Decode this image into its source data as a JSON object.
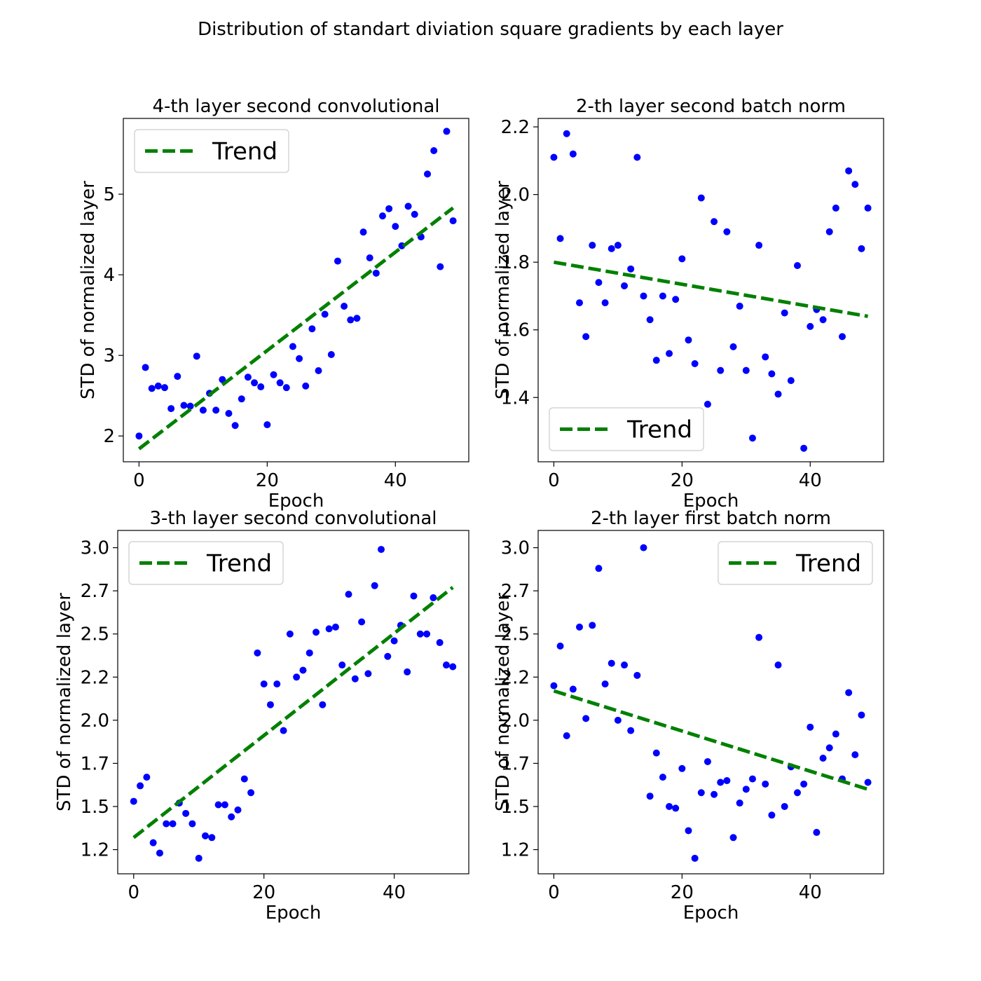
{
  "figure": {
    "title": "Distribution of standart diviation square gradients by each layer"
  },
  "chart_data": [
    {
      "type": "scatter",
      "title": "4-th layer second convolutional",
      "xlabel": "Epoch",
      "ylabel": "STD of normalized layer",
      "xlim": [
        -2.45,
        51.45
      ],
      "ylim": [
        1.68,
        5.94
      ],
      "xticks": [
        0,
        20,
        40
      ],
      "yticks": [
        2,
        3,
        4,
        5
      ],
      "ytick_labels": [
        "2",
        "3",
        "4",
        "5"
      ],
      "legend": {
        "label": "Trend",
        "position": "top-left"
      },
      "series": [
        {
          "kind": "points",
          "color": "#0000ff",
          "x": [
            0,
            1,
            2,
            3,
            4,
            5,
            6,
            7,
            8,
            9,
            10,
            11,
            12,
            13,
            14,
            15,
            16,
            17,
            18,
            19,
            20,
            21,
            22,
            23,
            24,
            25,
            26,
            27,
            28,
            29,
            30,
            31,
            32,
            33,
            34,
            35,
            36,
            37,
            38,
            39,
            40,
            41,
            42,
            43,
            44,
            45,
            46,
            47,
            48,
            49
          ],
          "y": [
            2.0,
            2.85,
            2.59,
            2.62,
            2.6,
            2.34,
            2.74,
            2.38,
            2.37,
            2.99,
            2.32,
            2.53,
            2.32,
            2.7,
            2.28,
            2.13,
            2.46,
            2.73,
            2.66,
            2.61,
            2.14,
            2.76,
            2.66,
            2.6,
            3.11,
            2.96,
            2.62,
            3.33,
            2.81,
            3.51,
            3.01,
            4.17,
            3.61,
            3.44,
            3.46,
            4.53,
            4.21,
            4.02,
            4.73,
            4.82,
            4.6,
            4.36,
            4.85,
            4.75,
            4.47,
            5.25,
            5.54,
            4.1,
            5.78,
            4.67
          ]
        },
        {
          "kind": "trend",
          "name": "Trend",
          "color": "#008000",
          "x": [
            0,
            49
          ],
          "y": [
            1.84,
            4.83
          ]
        }
      ]
    },
    {
      "type": "scatter",
      "title": "2-th layer second batch norm",
      "xlabel": "Epoch",
      "ylabel": "STD of normalized layer",
      "xlim": [
        -2.45,
        51.45
      ],
      "ylim": [
        1.21,
        2.225
      ],
      "xticks": [
        0,
        20,
        40
      ],
      "yticks": [
        1.4,
        1.6,
        1.8,
        2.0,
        2.2
      ],
      "ytick_labels": [
        "1.4",
        "1.6",
        "1.8",
        "2.0",
        "2.2"
      ],
      "legend": {
        "label": "Trend",
        "position": "bottom-left"
      },
      "series": [
        {
          "kind": "points",
          "color": "#0000ff",
          "x": [
            0,
            1,
            2,
            3,
            4,
            5,
            6,
            7,
            8,
            9,
            10,
            11,
            12,
            13,
            14,
            15,
            16,
            17,
            18,
            19,
            20,
            21,
            22,
            23,
            24,
            25,
            26,
            27,
            28,
            29,
            30,
            31,
            32,
            33,
            34,
            35,
            36,
            37,
            38,
            39,
            40,
            41,
            42,
            43,
            44,
            45,
            46,
            47,
            48,
            49
          ],
          "y": [
            2.11,
            1.87,
            2.18,
            2.12,
            1.68,
            1.58,
            1.85,
            1.74,
            1.68,
            1.84,
            1.85,
            1.73,
            1.78,
            2.11,
            1.7,
            1.63,
            1.51,
            1.7,
            1.53,
            1.69,
            1.81,
            1.57,
            1.5,
            1.99,
            1.38,
            1.92,
            1.48,
            1.89,
            1.55,
            1.67,
            1.48,
            1.28,
            1.85,
            1.52,
            1.47,
            1.41,
            1.65,
            1.45,
            1.79,
            1.25,
            1.61,
            1.66,
            1.63,
            1.89,
            1.96,
            1.58,
            2.07,
            2.03,
            1.84,
            1.96
          ]
        },
        {
          "kind": "trend",
          "name": "Trend",
          "color": "#008000",
          "x": [
            0,
            49
          ],
          "y": [
            1.8,
            1.64
          ]
        }
      ]
    },
    {
      "type": "scatter",
      "title": "3-th layer second convolutional",
      "xlabel": "Epoch",
      "ylabel": "STD of normalized layer",
      "xlim": [
        -2.45,
        51.45
      ],
      "ylim": [
        1.06,
        3.05
      ],
      "xticks": [
        0,
        20,
        40
      ],
      "yticks": [
        1.2,
        1.45,
        1.7,
        1.95,
        2.2,
        2.45,
        2.7,
        2.95
      ],
      "ytick_labels": [
        "1.2",
        "1.5",
        "1.7",
        "2.0",
        "2.2",
        "2.5",
        "2.7",
        "3.0"
      ],
      "legend": {
        "label": "Trend",
        "position": "top-left"
      },
      "series": [
        {
          "kind": "points",
          "color": "#0000ff",
          "x": [
            0,
            1,
            2,
            3,
            4,
            5,
            6,
            7,
            8,
            9,
            10,
            11,
            12,
            13,
            14,
            15,
            16,
            17,
            18,
            19,
            20,
            21,
            22,
            23,
            24,
            25,
            26,
            27,
            28,
            29,
            30,
            31,
            32,
            33,
            34,
            35,
            36,
            37,
            38,
            39,
            40,
            41,
            42,
            43,
            44,
            45,
            46,
            47,
            48,
            49
          ],
          "y": [
            1.48,
            1.57,
            1.62,
            1.24,
            1.18,
            1.35,
            1.35,
            1.47,
            1.41,
            1.35,
            1.15,
            1.28,
            1.27,
            1.46,
            1.46,
            1.39,
            1.43,
            1.61,
            1.53,
            2.34,
            2.16,
            2.04,
            2.16,
            1.89,
            2.45,
            2.2,
            2.24,
            2.34,
            2.46,
            2.04,
            2.48,
            2.49,
            2.27,
            2.68,
            2.19,
            2.52,
            2.22,
            2.73,
            2.94,
            2.32,
            2.41,
            2.5,
            2.23,
            2.67,
            2.45,
            2.45,
            2.66,
            2.4,
            2.27,
            2.26
          ]
        },
        {
          "kind": "trend",
          "name": "Trend",
          "color": "#008000",
          "x": [
            0,
            49
          ],
          "y": [
            1.27,
            2.72
          ]
        }
      ]
    },
    {
      "type": "scatter",
      "title": "2-th layer first batch norm",
      "xlabel": "Epoch",
      "ylabel": "STD of normalized layer",
      "xlim": [
        -2.45,
        51.45
      ],
      "ylim": [
        1.06,
        3.05
      ],
      "xticks": [
        0,
        20,
        40
      ],
      "yticks": [
        1.2,
        1.45,
        1.7,
        1.95,
        2.2,
        2.45,
        2.7,
        2.95
      ],
      "ytick_labels": [
        "1.2",
        "1.5",
        "1.7",
        "2.0",
        "2.2",
        "2.5",
        "2.7",
        "3.0"
      ],
      "legend": {
        "label": "Trend",
        "position": "top-right"
      },
      "series": [
        {
          "kind": "points",
          "color": "#0000ff",
          "x": [
            0,
            1,
            2,
            3,
            4,
            5,
            6,
            7,
            8,
            9,
            10,
            11,
            12,
            13,
            14,
            15,
            16,
            17,
            18,
            19,
            20,
            21,
            22,
            23,
            24,
            25,
            26,
            27,
            28,
            29,
            30,
            31,
            32,
            33,
            34,
            35,
            36,
            37,
            38,
            39,
            40,
            41,
            42,
            43,
            44,
            45,
            46,
            47,
            48,
            49
          ],
          "y": [
            2.15,
            2.38,
            1.86,
            2.13,
            2.49,
            1.96,
            2.5,
            2.83,
            2.16,
            2.28,
            1.95,
            2.27,
            1.89,
            2.21,
            2.95,
            1.51,
            1.76,
            1.62,
            1.45,
            1.44,
            1.67,
            1.31,
            1.15,
            1.53,
            1.71,
            1.52,
            1.59,
            1.6,
            1.27,
            1.47,
            1.55,
            1.61,
            2.43,
            1.58,
            1.4,
            2.27,
            1.45,
            1.68,
            1.53,
            1.58,
            1.91,
            1.3,
            1.73,
            1.79,
            1.87,
            1.61,
            2.11,
            1.75,
            1.98,
            1.59
          ]
        },
        {
          "kind": "trend",
          "name": "Trend",
          "color": "#008000",
          "x": [
            0,
            49
          ],
          "y": [
            2.12,
            1.55
          ]
        }
      ]
    }
  ]
}
